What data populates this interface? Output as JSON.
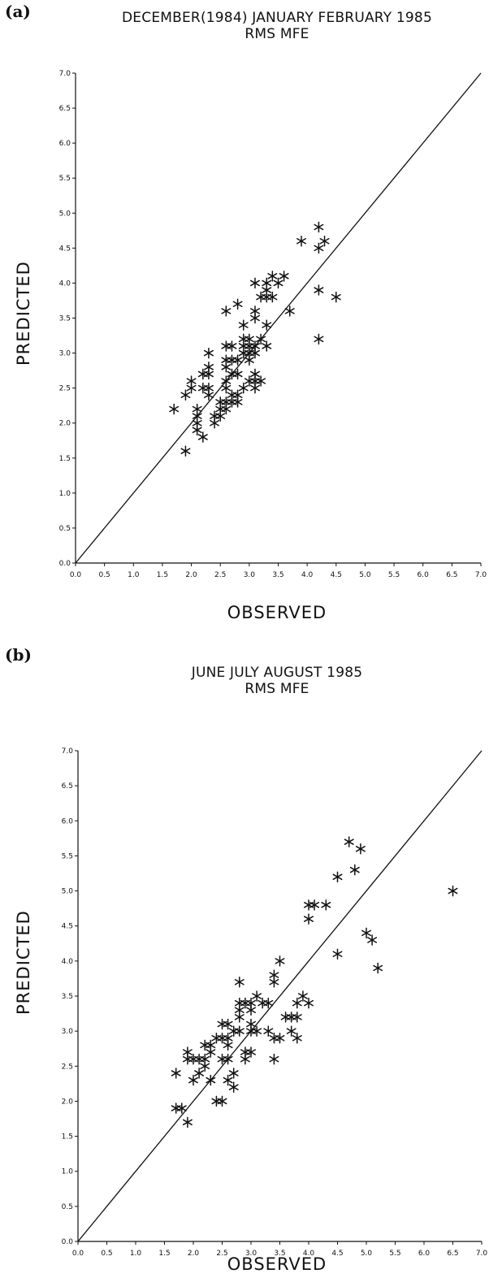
{
  "chart_data": [
    {
      "panel_label": "(a)",
      "type": "scatter",
      "title": "DECEMBER(1984) JANUARY FEBRUARY  1985",
      "subtitle": "RMS  MFE",
      "xlabel": "OBSERVED",
      "ylabel": "PREDICTED",
      "xlim": [
        0,
        7
      ],
      "ylim": [
        0,
        7
      ],
      "xticks": [
        "0.0",
        "0.5",
        "1.0",
        "1.5",
        "2.0",
        "2.5",
        "3.0",
        "3.5",
        "4.0",
        "4.5",
        "5.0",
        "5.5",
        "6.0",
        "6.5",
        "7.0"
      ],
      "yticks": [
        "0.0",
        "0.5",
        "1.0",
        "1.5",
        "2.0",
        "2.5",
        "3.0",
        "3.5",
        "4.0",
        "4.5",
        "5.0",
        "5.5",
        "6.0",
        "6.5",
        "7.0"
      ],
      "reference_line": "y = x",
      "marker": "asterisk",
      "points": [
        [
          1.7,
          2.2
        ],
        [
          1.9,
          1.6
        ],
        [
          1.9,
          2.4
        ],
        [
          2.0,
          2.5
        ],
        [
          2.0,
          2.6
        ],
        [
          2.1,
          1.9
        ],
        [
          2.1,
          2.0
        ],
        [
          2.1,
          2.1
        ],
        [
          2.1,
          2.2
        ],
        [
          2.2,
          1.8
        ],
        [
          2.2,
          2.5
        ],
        [
          2.2,
          2.7
        ],
        [
          2.3,
          2.4
        ],
        [
          2.3,
          2.5
        ],
        [
          2.3,
          2.7
        ],
        [
          2.3,
          2.8
        ],
        [
          2.3,
          3.0
        ],
        [
          2.4,
          2.0
        ],
        [
          2.4,
          2.1
        ],
        [
          2.5,
          2.1
        ],
        [
          2.5,
          2.2
        ],
        [
          2.5,
          2.3
        ],
        [
          2.6,
          2.2
        ],
        [
          2.6,
          2.3
        ],
        [
          2.6,
          2.5
        ],
        [
          2.6,
          2.6
        ],
        [
          2.6,
          2.8
        ],
        [
          2.6,
          2.9
        ],
        [
          2.6,
          3.1
        ],
        [
          2.6,
          3.6
        ],
        [
          2.7,
          2.3
        ],
        [
          2.7,
          2.4
        ],
        [
          2.7,
          2.7
        ],
        [
          2.7,
          2.9
        ],
        [
          2.7,
          3.1
        ],
        [
          2.8,
          2.3
        ],
        [
          2.8,
          2.4
        ],
        [
          2.8,
          2.7
        ],
        [
          2.8,
          2.9
        ],
        [
          2.8,
          3.7
        ],
        [
          2.9,
          2.5
        ],
        [
          2.9,
          3.0
        ],
        [
          2.9,
          3.1
        ],
        [
          2.9,
          3.2
        ],
        [
          2.9,
          3.4
        ],
        [
          3.0,
          2.6
        ],
        [
          3.0,
          2.9
        ],
        [
          3.0,
          3.0
        ],
        [
          3.0,
          3.1
        ],
        [
          3.0,
          3.2
        ],
        [
          3.1,
          2.5
        ],
        [
          3.1,
          2.6
        ],
        [
          3.1,
          2.7
        ],
        [
          3.1,
          3.0
        ],
        [
          3.1,
          3.1
        ],
        [
          3.1,
          3.5
        ],
        [
          3.1,
          3.6
        ],
        [
          3.1,
          4.0
        ],
        [
          3.2,
          2.6
        ],
        [
          3.2,
          3.2
        ],
        [
          3.2,
          3.8
        ],
        [
          3.3,
          3.1
        ],
        [
          3.3,
          3.4
        ],
        [
          3.3,
          3.8
        ],
        [
          3.3,
          3.9
        ],
        [
          3.3,
          4.0
        ],
        [
          3.4,
          3.8
        ],
        [
          3.4,
          4.1
        ],
        [
          3.5,
          4.0
        ],
        [
          3.6,
          4.1
        ],
        [
          3.7,
          3.6
        ],
        [
          3.9,
          4.6
        ],
        [
          4.2,
          3.2
        ],
        [
          4.2,
          3.9
        ],
        [
          4.2,
          4.5
        ],
        [
          4.2,
          4.8
        ],
        [
          4.3,
          4.6
        ],
        [
          4.5,
          3.8
        ]
      ]
    },
    {
      "panel_label": "(b)",
      "type": "scatter",
      "title": "JUNE JULY AUGUST   1985",
      "subtitle": "RMS  MFE",
      "xlabel": "OBSERVED",
      "ylabel": "PREDICTED",
      "xlim": [
        0,
        7
      ],
      "ylim": [
        0,
        7
      ],
      "xticks": [
        "0.0",
        "0.5",
        "1.0",
        "1.5",
        "2.0",
        "2.5",
        "3.0",
        "3.5",
        "4.0",
        "4.5",
        "5.0",
        "5.5",
        "6.0",
        "6.5",
        "7.0"
      ],
      "yticks": [
        "0.0",
        "0.5",
        "1.0",
        "1.5",
        "2.0",
        "2.5",
        "3.0",
        "3.5",
        "4.0",
        "4.5",
        "5.0",
        "5.5",
        "6.0",
        "6.5",
        "7.0"
      ],
      "reference_line": "y = x",
      "marker": "asterisk",
      "points": [
        [
          1.7,
          1.9
        ],
        [
          1.7,
          2.4
        ],
        [
          1.8,
          1.9
        ],
        [
          1.9,
          1.7
        ],
        [
          1.9,
          2.6
        ],
        [
          1.9,
          2.7
        ],
        [
          2.0,
          2.3
        ],
        [
          2.0,
          2.6
        ],
        [
          2.1,
          2.4
        ],
        [
          2.1,
          2.6
        ],
        [
          2.2,
          2.5
        ],
        [
          2.2,
          2.6
        ],
        [
          2.2,
          2.8
        ],
        [
          2.3,
          2.3
        ],
        [
          2.3,
          2.7
        ],
        [
          2.3,
          2.8
        ],
        [
          2.4,
          2.0
        ],
        [
          2.4,
          2.9
        ],
        [
          2.5,
          2.0
        ],
        [
          2.5,
          2.6
        ],
        [
          2.5,
          2.9
        ],
        [
          2.5,
          3.1
        ],
        [
          2.6,
          2.3
        ],
        [
          2.6,
          2.6
        ],
        [
          2.6,
          2.8
        ],
        [
          2.6,
          2.9
        ],
        [
          2.6,
          3.1
        ],
        [
          2.7,
          2.2
        ],
        [
          2.7,
          2.4
        ],
        [
          2.7,
          3.0
        ],
        [
          2.8,
          3.0
        ],
        [
          2.8,
          3.2
        ],
        [
          2.8,
          3.3
        ],
        [
          2.8,
          3.4
        ],
        [
          2.8,
          3.7
        ],
        [
          2.9,
          2.6
        ],
        [
          2.9,
          2.7
        ],
        [
          2.9,
          3.4
        ],
        [
          3.0,
          2.7
        ],
        [
          3.0,
          3.0
        ],
        [
          3.0,
          3.1
        ],
        [
          3.0,
          3.3
        ],
        [
          3.0,
          3.4
        ],
        [
          3.1,
          3.0
        ],
        [
          3.1,
          3.5
        ],
        [
          3.2,
          3.4
        ],
        [
          3.3,
          3.0
        ],
        [
          3.3,
          3.4
        ],
        [
          3.4,
          2.6
        ],
        [
          3.4,
          2.9
        ],
        [
          3.4,
          3.7
        ],
        [
          3.4,
          3.8
        ],
        [
          3.5,
          2.9
        ],
        [
          3.5,
          4.0
        ],
        [
          3.6,
          3.2
        ],
        [
          3.7,
          3.0
        ],
        [
          3.7,
          3.2
        ],
        [
          3.8,
          2.9
        ],
        [
          3.8,
          3.2
        ],
        [
          3.8,
          3.4
        ],
        [
          3.9,
          3.5
        ],
        [
          4.0,
          3.4
        ],
        [
          4.0,
          4.6
        ],
        [
          4.0,
          4.8
        ],
        [
          4.1,
          4.8
        ],
        [
          4.3,
          4.8
        ],
        [
          4.5,
          4.1
        ],
        [
          4.5,
          5.2
        ],
        [
          4.7,
          5.7
        ],
        [
          4.8,
          5.3
        ],
        [
          4.9,
          5.6
        ],
        [
          5.0,
          4.4
        ],
        [
          5.1,
          4.3
        ],
        [
          5.2,
          3.9
        ],
        [
          6.5,
          5.0
        ]
      ]
    }
  ]
}
